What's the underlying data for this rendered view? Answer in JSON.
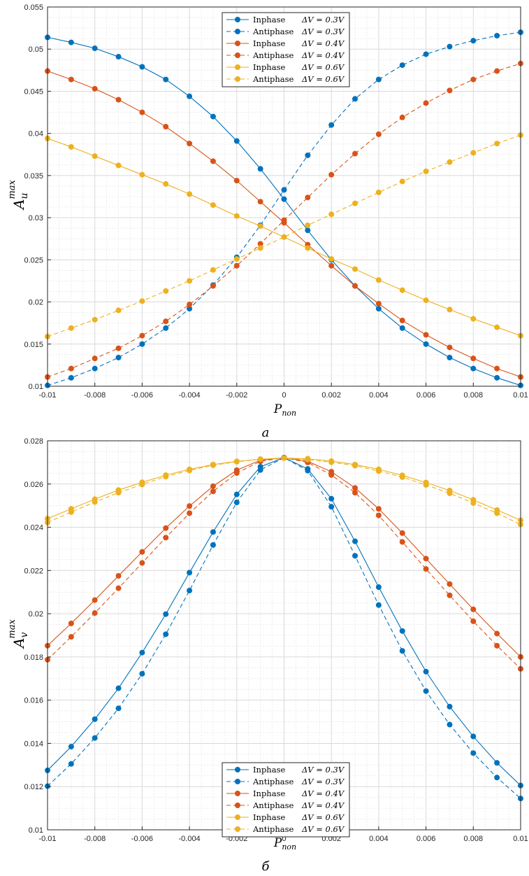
{
  "chart_data": [
    {
      "type": "line",
      "panel_label": "a",
      "xlabel": "P",
      "xlabel_sub": "non",
      "ylabel": "A",
      "ylabel_sub": "u",
      "ylabel_sup": "max",
      "xlim": [
        -0.01,
        0.01
      ],
      "ylim": [
        0.01,
        0.055
      ],
      "xticks": [
        -0.01,
        -0.008,
        -0.006,
        -0.004,
        -0.002,
        0,
        0.002,
        0.004,
        0.006,
        0.008,
        0.01
      ],
      "xtick_labels": [
        "-0.01",
        "-0.008",
        "-0.006",
        "-0.004",
        "-0.002",
        "0",
        "0.002",
        "0.004",
        "0.006",
        "0.008",
        "0.01"
      ],
      "yticks": [
        0.01,
        0.015,
        0.02,
        0.025,
        0.03,
        0.035,
        0.04,
        0.045,
        0.05,
        0.055
      ],
      "ytick_labels": [
        "0.01",
        "0.015",
        "0.02",
        "0.025",
        "0.03",
        "0.035",
        "0.04",
        "0.045",
        "0.05",
        "0.055"
      ],
      "grid": true,
      "legend_position": "top-center",
      "x": [
        -0.01,
        -0.009,
        -0.008,
        -0.007,
        -0.006,
        -0.005,
        -0.004,
        -0.003,
        -0.002,
        -0.001,
        0,
        0.001,
        0.002,
        0.003,
        0.004,
        0.005,
        0.006,
        0.007,
        0.008,
        0.009,
        0.01
      ],
      "series": [
        {
          "name": "Inphase",
          "dv": "ΔV = 0.3V",
          "color": "#0072BD",
          "dashed": false,
          "values": [
            0.0514,
            0.0508,
            0.0501,
            0.0491,
            0.0479,
            0.0464,
            0.0444,
            0.042,
            0.0391,
            0.0358,
            0.0322,
            0.0285,
            0.025,
            0.0219,
            0.0192,
            0.0169,
            0.015,
            0.0134,
            0.0121,
            0.011,
            0.0101
          ]
        },
        {
          "name": "Antiphase",
          "dv": "ΔV = 0.3V",
          "color": "#0072BD",
          "dashed": true,
          "values": [
            0.0101,
            0.011,
            0.0121,
            0.0134,
            0.015,
            0.0169,
            0.0192,
            0.022,
            0.0253,
            0.0291,
            0.0333,
            0.0374,
            0.041,
            0.0441,
            0.0464,
            0.0481,
            0.0494,
            0.0503,
            0.051,
            0.0516,
            0.052
          ]
        },
        {
          "name": "Inphase",
          "dv": "ΔV = 0.4V",
          "color": "#D95319",
          "dashed": false,
          "values": [
            0.0474,
            0.0464,
            0.0453,
            0.044,
            0.0425,
            0.0408,
            0.0388,
            0.0367,
            0.0344,
            0.0319,
            0.0294,
            0.0268,
            0.0243,
            0.0219,
            0.0198,
            0.0178,
            0.0161,
            0.0146,
            0.0133,
            0.0121,
            0.0111
          ]
        },
        {
          "name": "Antiphase",
          "dv": "ΔV = 0.4V",
          "color": "#D95319",
          "dashed": true,
          "values": [
            0.0111,
            0.0121,
            0.0133,
            0.0145,
            0.016,
            0.0177,
            0.0197,
            0.0219,
            0.0243,
            0.0269,
            0.0297,
            0.0324,
            0.0351,
            0.0376,
            0.0399,
            0.0419,
            0.0436,
            0.0451,
            0.0464,
            0.0474,
            0.0483
          ]
        },
        {
          "name": "Inphase",
          "dv": "ΔV = 0.6V",
          "color": "#EDB120",
          "dashed": false,
          "values": [
            0.0394,
            0.0384,
            0.0373,
            0.0362,
            0.0351,
            0.034,
            0.0328,
            0.0315,
            0.0302,
            0.029,
            0.0277,
            0.0264,
            0.0251,
            0.0239,
            0.0226,
            0.0214,
            0.0202,
            0.0191,
            0.018,
            0.017,
            0.016
          ]
        },
        {
          "name": "Antiphase",
          "dv": "ΔV = 0.6V",
          "color": "#EDB120",
          "dashed": true,
          "values": [
            0.0159,
            0.0169,
            0.0179,
            0.019,
            0.0201,
            0.0213,
            0.0225,
            0.0238,
            0.0251,
            0.0264,
            0.0277,
            0.0291,
            0.0304,
            0.0317,
            0.033,
            0.0343,
            0.0355,
            0.0366,
            0.0377,
            0.0388,
            0.0398
          ]
        }
      ]
    },
    {
      "type": "line",
      "panel_label": "б",
      "xlabel": "P",
      "xlabel_sub": "non",
      "ylabel": "A",
      "ylabel_sub": "v",
      "ylabel_sup": "max",
      "xlim": [
        -0.01,
        0.01
      ],
      "ylim": [
        0.01,
        0.028
      ],
      "xticks": [
        -0.01,
        -0.008,
        -0.006,
        -0.004,
        -0.002,
        0,
        0.002,
        0.004,
        0.006,
        0.008,
        0.01
      ],
      "xtick_labels": [
        "-0.01",
        "-0.008",
        "-0.006",
        "-0.004",
        "-0.002",
        "0",
        "0.002",
        "0.004",
        "0.006",
        "0.008",
        "0.01"
      ],
      "yticks": [
        0.01,
        0.012,
        0.014,
        0.016,
        0.018,
        0.02,
        0.022,
        0.024,
        0.026,
        0.028
      ],
      "ytick_labels": [
        "0.01",
        "0.012",
        "0.014",
        "0.016",
        "0.018",
        "0.02",
        "0.022",
        "0.024",
        "0.026",
        "0.028"
      ],
      "grid": true,
      "legend_position": "bottom-center",
      "x": [
        -0.01,
        -0.009,
        -0.008,
        -0.007,
        -0.006,
        -0.005,
        -0.004,
        -0.003,
        -0.002,
        -0.001,
        0,
        0.001,
        0.002,
        0.003,
        0.004,
        0.005,
        0.006,
        0.007,
        0.008,
        0.009,
        0.01
      ],
      "series": [
        {
          "name": "Inphase",
          "dv": "ΔV = 0.3V",
          "color": "#0072BD",
          "dashed": false,
          "values": [
            0.01275,
            0.01385,
            0.01512,
            0.01655,
            0.0182,
            0.01998,
            0.0219,
            0.02378,
            0.02552,
            0.0268,
            0.02722,
            0.0267,
            0.02532,
            0.02335,
            0.02123,
            0.0192,
            0.01732,
            0.0157,
            0.01432,
            0.0131,
            0.01205
          ]
        },
        {
          "name": "Antiphase",
          "dv": "ΔV = 0.3V",
          "color": "#0072BD",
          "dashed": true,
          "values": [
            0.01202,
            0.01305,
            0.01425,
            0.01562,
            0.01722,
            0.01905,
            0.02107,
            0.02318,
            0.02515,
            0.02665,
            0.02722,
            0.02662,
            0.02495,
            0.02268,
            0.0204,
            0.01828,
            0.01642,
            0.01487,
            0.01355,
            0.01242,
            0.01145
          ]
        },
        {
          "name": "Inphase",
          "dv": "ΔV = 0.4V",
          "color": "#D95319",
          "dashed": false,
          "values": [
            0.01852,
            0.01955,
            0.02063,
            0.02175,
            0.02286,
            0.02396,
            0.02498,
            0.0259,
            0.02664,
            0.0271,
            0.02722,
            0.02705,
            0.02657,
            0.02582,
            0.02485,
            0.02373,
            0.02255,
            0.02137,
            0.0202,
            0.01908,
            0.018
          ]
        },
        {
          "name": "Antiphase",
          "dv": "ΔV = 0.4V",
          "color": "#D95319",
          "dashed": true,
          "values": [
            0.01787,
            0.01893,
            0.02003,
            0.02118,
            0.02235,
            0.02352,
            0.02465,
            0.02566,
            0.02651,
            0.02705,
            0.02722,
            0.027,
            0.02642,
            0.0256,
            0.02455,
            0.02332,
            0.02207,
            0.02085,
            0.01965,
            0.01852,
            0.01745
          ]
        },
        {
          "name": "Inphase",
          "dv": "ΔV = 0.6V",
          "color": "#EDB120",
          "dashed": false,
          "values": [
            0.0244,
            0.02485,
            0.0253,
            0.02572,
            0.02608,
            0.02641,
            0.02668,
            0.0269,
            0.02705,
            0.02715,
            0.0272,
            0.02717,
            0.02706,
            0.0269,
            0.02668,
            0.0264,
            0.02607,
            0.0257,
            0.02527,
            0.0248,
            0.02432
          ]
        },
        {
          "name": "Antiphase",
          "dv": "ΔV = 0.6V",
          "color": "#EDB120",
          "dashed": true,
          "values": [
            0.02422,
            0.0247,
            0.02517,
            0.0256,
            0.02598,
            0.02634,
            0.02663,
            0.02687,
            0.02703,
            0.02715,
            0.0272,
            0.02713,
            0.02701,
            0.02685,
            0.0266,
            0.02632,
            0.02596,
            0.02557,
            0.02512,
            0.02465,
            0.02413
          ]
        }
      ]
    }
  ]
}
